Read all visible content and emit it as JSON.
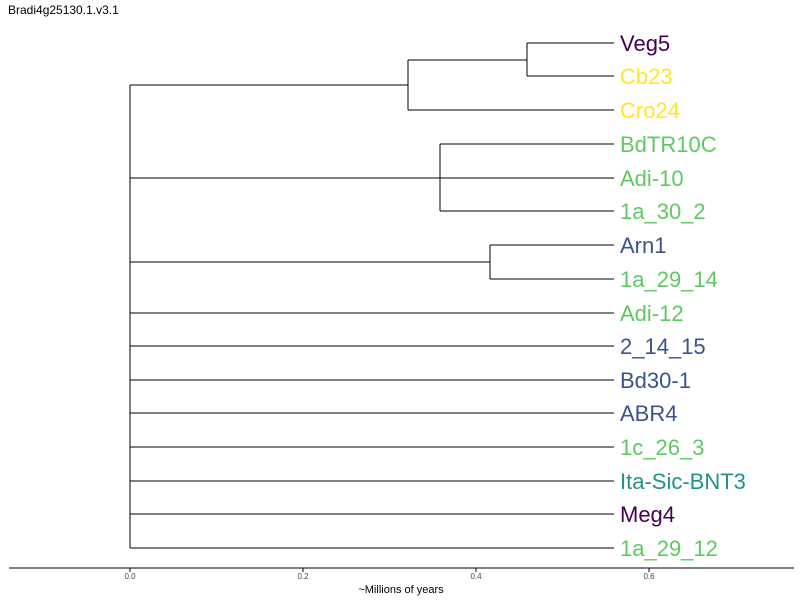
{
  "title": "Bradi4g25130.1.v3.1",
  "axis": {
    "label": "~Millions of years",
    "ticks": [
      "0.0",
      "0.2",
      "0.4",
      "0.6"
    ]
  },
  "colors": {
    "dark_purple": "#440154",
    "yellow": "#fde725",
    "green": "#5ec962",
    "slate_blue": "#3b528b",
    "teal": "#21918c",
    "line": "#000000"
  },
  "leaves": [
    {
      "label": "Veg5",
      "color": "#440154"
    },
    {
      "label": "Cb23",
      "color": "#fde725"
    },
    {
      "label": "Cro24",
      "color": "#fde725"
    },
    {
      "label": "BdTR10C",
      "color": "#5ec962"
    },
    {
      "label": "Adi-10",
      "color": "#5ec962"
    },
    {
      "label": "1a_30_2",
      "color": "#5ec962"
    },
    {
      "label": "Arn1",
      "color": "#3b528b"
    },
    {
      "label": "1a_29_14",
      "color": "#5ec962"
    },
    {
      "label": "Adi-12",
      "color": "#5ec962"
    },
    {
      "label": "2_14_15",
      "color": "#3b528b"
    },
    {
      "label": "Bd30-1",
      "color": "#3b528b"
    },
    {
      "label": "ABR4",
      "color": "#3b528b"
    },
    {
      "label": "1c_26_3",
      "color": "#5ec962"
    },
    {
      "label": "Ita-Sic-BNT3",
      "color": "#21918c"
    },
    {
      "label": "Meg4",
      "color": "#440154"
    },
    {
      "label": "1a_29_12",
      "color": "#5ec962"
    }
  ]
}
